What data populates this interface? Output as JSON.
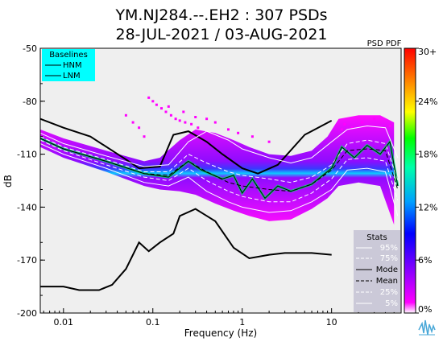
{
  "chart_data": {
    "type": "heatmap",
    "title_line1": "YM.NJ284.--.EH2 : 307 PSDs",
    "title_line2": "28-JUL-2021 / 03-AUG-2021",
    "xlabel": "Frequency (Hz)",
    "ylabel": "dB",
    "x_scale": "log",
    "xlim": [
      0.0055,
      60
    ],
    "ylim": [
      -200,
      -50
    ],
    "x_ticks": [
      {
        "value": 0.01,
        "label": "0.01"
      },
      {
        "value": 0.1,
        "label": "0.1"
      },
      {
        "value": 1,
        "label": "1"
      },
      {
        "value": 10,
        "label": "10"
      }
    ],
    "y_ticks": [
      {
        "value": -50,
        "label": "-50"
      },
      {
        "value": -80,
        "label": "-80"
      },
      {
        "value": -110,
        "label": "-110"
      },
      {
        "value": -140,
        "label": "-140"
      },
      {
        "value": -170,
        "label": "-170"
      },
      {
        "value": -200,
        "label": "-200"
      }
    ],
    "colorbar": {
      "title": "PSD PDF",
      "ticks": [
        {
          "value": 30,
          "label": "30+"
        },
        {
          "value": 24,
          "label": "24%"
        },
        {
          "value": 18,
          "label": "18%"
        },
        {
          "value": 12,
          "label": "12%"
        },
        {
          "value": 6,
          "label": "6%"
        },
        {
          "value": 0,
          "label": "0%"
        }
      ],
      "range": [
        0,
        30
      ]
    },
    "legend_baselines": {
      "title": "Baselines",
      "items": [
        "HNM",
        "LNM"
      ],
      "background": "#00ffff",
      "placement": "top-left"
    },
    "legend_stats": {
      "title": "Stats",
      "items": [
        "95%",
        "75%",
        "Mode",
        "Mean",
        "25%",
        "5%"
      ],
      "placement": "bottom-right"
    },
    "nhnm": [
      {
        "x": 0.0055,
        "y": -90
      },
      {
        "x": 0.01,
        "y": -95
      },
      {
        "x": 0.02,
        "y": -100
      },
      {
        "x": 0.05,
        "y": -113
      },
      {
        "x": 0.07,
        "y": -118
      },
      {
        "x": 0.12,
        "y": -117
      },
      {
        "x": 0.17,
        "y": -99
      },
      {
        "x": 0.25,
        "y": -97
      },
      {
        "x": 0.4,
        "y": -103
      },
      {
        "x": 0.6,
        "y": -110
      },
      {
        "x": 1,
        "y": -118
      },
      {
        "x": 1.5,
        "y": -121
      },
      {
        "x": 2.5,
        "y": -116
      },
      {
        "x": 5,
        "y": -99
      },
      {
        "x": 10,
        "y": -91
      }
    ],
    "nlnm": [
      {
        "x": 0.0055,
        "y": -185
      },
      {
        "x": 0.01,
        "y": -185
      },
      {
        "x": 0.015,
        "y": -187
      },
      {
        "x": 0.025,
        "y": -187
      },
      {
        "x": 0.035,
        "y": -184
      },
      {
        "x": 0.05,
        "y": -175
      },
      {
        "x": 0.07,
        "y": -160
      },
      {
        "x": 0.09,
        "y": -165
      },
      {
        "x": 0.12,
        "y": -160
      },
      {
        "x": 0.17,
        "y": -155
      },
      {
        "x": 0.2,
        "y": -145
      },
      {
        "x": 0.3,
        "y": -141
      },
      {
        "x": 0.5,
        "y": -148
      },
      {
        "x": 0.8,
        "y": -163
      },
      {
        "x": 1.2,
        "y": -169
      },
      {
        "x": 2,
        "y": -167
      },
      {
        "x": 3,
        "y": -166
      },
      {
        "x": 6,
        "y": -166
      },
      {
        "x": 10,
        "y": -167
      }
    ],
    "stats": {
      "p95": [
        {
          "x": 0.0055,
          "y": -98
        },
        {
          "x": 0.01,
          "y": -104
        },
        {
          "x": 0.03,
          "y": -111
        },
        {
          "x": 0.08,
          "y": -117
        },
        {
          "x": 0.15,
          "y": -116
        },
        {
          "x": 0.25,
          "y": -103
        },
        {
          "x": 0.4,
          "y": -97
        },
        {
          "x": 0.7,
          "y": -102
        },
        {
          "x": 1,
          "y": -107
        },
        {
          "x": 2,
          "y": -112
        },
        {
          "x": 3.5,
          "y": -115
        },
        {
          "x": 6,
          "y": -112
        },
        {
          "x": 10,
          "y": -103
        },
        {
          "x": 15,
          "y": -96
        },
        {
          "x": 25,
          "y": -94
        },
        {
          "x": 40,
          "y": -95
        },
        {
          "x": 55,
          "y": -112
        }
      ],
      "p75": [
        {
          "x": 0.0055,
          "y": -100
        },
        {
          "x": 0.01,
          "y": -106
        },
        {
          "x": 0.03,
          "y": -113
        },
        {
          "x": 0.08,
          "y": -120
        },
        {
          "x": 0.15,
          "y": -120
        },
        {
          "x": 0.25,
          "y": -110
        },
        {
          "x": 0.4,
          "y": -115
        },
        {
          "x": 0.7,
          "y": -120
        },
        {
          "x": 1,
          "y": -122
        },
        {
          "x": 2,
          "y": -124
        },
        {
          "x": 3.5,
          "y": -126
        },
        {
          "x": 6,
          "y": -123
        },
        {
          "x": 10,
          "y": -116
        },
        {
          "x": 15,
          "y": -104
        },
        {
          "x": 25,
          "y": -102
        },
        {
          "x": 40,
          "y": -104
        },
        {
          "x": 55,
          "y": -125
        }
      ],
      "mode": [
        {
          "x": 0.0055,
          "y": -101
        },
        {
          "x": 0.01,
          "y": -107
        },
        {
          "x": 0.03,
          "y": -114
        },
        {
          "x": 0.08,
          "y": -121
        },
        {
          "x": 0.15,
          "y": -123
        },
        {
          "x": 0.25,
          "y": -114
        },
        {
          "x": 0.35,
          "y": -119
        },
        {
          "x": 0.6,
          "y": -124
        },
        {
          "x": 0.8,
          "y": -122
        },
        {
          "x": 1,
          "y": -132
        },
        {
          "x": 1.3,
          "y": -124
        },
        {
          "x": 1.8,
          "y": -135
        },
        {
          "x": 2.5,
          "y": -128
        },
        {
          "x": 3.5,
          "y": -131
        },
        {
          "x": 6,
          "y": -127
        },
        {
          "x": 10,
          "y": -118
        },
        {
          "x": 13,
          "y": -106
        },
        {
          "x": 18,
          "y": -112
        },
        {
          "x": 25,
          "y": -105
        },
        {
          "x": 35,
          "y": -110
        },
        {
          "x": 45,
          "y": -103
        },
        {
          "x": 55,
          "y": -128
        }
      ],
      "mean": [
        {
          "x": 0.0055,
          "y": -101
        },
        {
          "x": 0.01,
          "y": -107
        },
        {
          "x": 0.03,
          "y": -114
        },
        {
          "x": 0.08,
          "y": -121
        },
        {
          "x": 0.15,
          "y": -122
        },
        {
          "x": 0.25,
          "y": -114
        },
        {
          "x": 0.4,
          "y": -120
        },
        {
          "x": 0.7,
          "y": -126
        },
        {
          "x": 1,
          "y": -128
        },
        {
          "x": 2,
          "y": -130
        },
        {
          "x": 3.5,
          "y": -131
        },
        {
          "x": 6,
          "y": -127
        },
        {
          "x": 10,
          "y": -119
        },
        {
          "x": 15,
          "y": -108
        },
        {
          "x": 25,
          "y": -107
        },
        {
          "x": 40,
          "y": -108
        },
        {
          "x": 55,
          "y": -130
        }
      ],
      "p25": [
        {
          "x": 0.0055,
          "y": -102
        },
        {
          "x": 0.01,
          "y": -108
        },
        {
          "x": 0.03,
          "y": -116
        },
        {
          "x": 0.08,
          "y": -123
        },
        {
          "x": 0.15,
          "y": -125
        },
        {
          "x": 0.25,
          "y": -118
        },
        {
          "x": 0.4,
          "y": -125
        },
        {
          "x": 0.7,
          "y": -131
        },
        {
          "x": 1,
          "y": -134
        },
        {
          "x": 2,
          "y": -137
        },
        {
          "x": 3.5,
          "y": -137
        },
        {
          "x": 6,
          "y": -132
        },
        {
          "x": 10,
          "y": -124
        },
        {
          "x": 15,
          "y": -113
        },
        {
          "x": 25,
          "y": -112
        },
        {
          "x": 40,
          "y": -114
        },
        {
          "x": 55,
          "y": -136
        }
      ],
      "p5": [
        {
          "x": 0.0055,
          "y": -104
        },
        {
          "x": 0.01,
          "y": -110
        },
        {
          "x": 0.03,
          "y": -118
        },
        {
          "x": 0.08,
          "y": -126
        },
        {
          "x": 0.15,
          "y": -128
        },
        {
          "x": 0.25,
          "y": -123
        },
        {
          "x": 0.4,
          "y": -131
        },
        {
          "x": 0.7,
          "y": -137
        },
        {
          "x": 1,
          "y": -140
        },
        {
          "x": 2,
          "y": -143
        },
        {
          "x": 3.5,
          "y": -142
        },
        {
          "x": 6,
          "y": -137
        },
        {
          "x": 10,
          "y": -130
        },
        {
          "x": 15,
          "y": -119
        },
        {
          "x": 25,
          "y": -118
        },
        {
          "x": 40,
          "y": -120
        },
        {
          "x": 55,
          "y": -145
        }
      ]
    },
    "pdf_envelope": {
      "upper": [
        {
          "x": 0.0055,
          "y": -96
        },
        {
          "x": 0.01,
          "y": -101
        },
        {
          "x": 0.03,
          "y": -108
        },
        {
          "x": 0.08,
          "y": -114
        },
        {
          "x": 0.12,
          "y": -112
        },
        {
          "x": 0.2,
          "y": -102
        },
        {
          "x": 0.3,
          "y": -96
        },
        {
          "x": 0.5,
          "y": -98
        },
        {
          "x": 0.8,
          "y": -102
        },
        {
          "x": 1.2,
          "y": -106
        },
        {
          "x": 2,
          "y": -110
        },
        {
          "x": 3.5,
          "y": -111
        },
        {
          "x": 6,
          "y": -108
        },
        {
          "x": 9,
          "y": -100
        },
        {
          "x": 12,
          "y": -90
        },
        {
          "x": 20,
          "y": -88
        },
        {
          "x": 35,
          "y": -88
        },
        {
          "x": 50,
          "y": -92
        }
      ],
      "lower": [
        {
          "x": 50,
          "y": -150
        },
        {
          "x": 35,
          "y": -128
        },
        {
          "x": 20,
          "y": -126
        },
        {
          "x": 12,
          "y": -128
        },
        {
          "x": 9,
          "y": -135
        },
        {
          "x": 6,
          "y": -141
        },
        {
          "x": 3.5,
          "y": -147
        },
        {
          "x": 2,
          "y": -148
        },
        {
          "x": 1.2,
          "y": -145
        },
        {
          "x": 0.8,
          "y": -142
        },
        {
          "x": 0.5,
          "y": -138
        },
        {
          "x": 0.3,
          "y": -133
        },
        {
          "x": 0.2,
          "y": -131
        },
        {
          "x": 0.12,
          "y": -130
        },
        {
          "x": 0.08,
          "y": -128
        },
        {
          "x": 0.03,
          "y": -120
        },
        {
          "x": 0.01,
          "y": -112
        },
        {
          "x": 0.0055,
          "y": -106
        }
      ]
    },
    "pdf_dots": [
      {
        "x": 0.09,
        "y": -78
      },
      {
        "x": 0.1,
        "y": -80
      },
      {
        "x": 0.11,
        "y": -82
      },
      {
        "x": 0.125,
        "y": -84
      },
      {
        "x": 0.14,
        "y": -86
      },
      {
        "x": 0.16,
        "y": -88
      },
      {
        "x": 0.18,
        "y": -90
      },
      {
        "x": 0.2,
        "y": -91
      },
      {
        "x": 0.23,
        "y": -92
      },
      {
        "x": 0.27,
        "y": -93
      },
      {
        "x": 0.32,
        "y": -95
      },
      {
        "x": 0.05,
        "y": -88
      },
      {
        "x": 0.06,
        "y": -92
      },
      {
        "x": 0.07,
        "y": -95
      },
      {
        "x": 0.08,
        "y": -100
      },
      {
        "x": 0.15,
        "y": -83
      },
      {
        "x": 0.22,
        "y": -86
      },
      {
        "x": 0.3,
        "y": -89
      },
      {
        "x": 0.5,
        "y": -92
      },
      {
        "x": 0.7,
        "y": -96
      },
      {
        "x": 0.9,
        "y": -98
      },
      {
        "x": 1.3,
        "y": -100
      },
      {
        "x": 2,
        "y": -103
      },
      {
        "x": 0.4,
        "y": -90
      },
      {
        "x": 13,
        "y": -96
      },
      {
        "x": 14,
        "y": -93
      },
      {
        "x": 17,
        "y": -95
      },
      {
        "x": 22,
        "y": -92
      },
      {
        "x": 30,
        "y": -90
      },
      {
        "x": 45,
        "y": -94
      }
    ]
  }
}
